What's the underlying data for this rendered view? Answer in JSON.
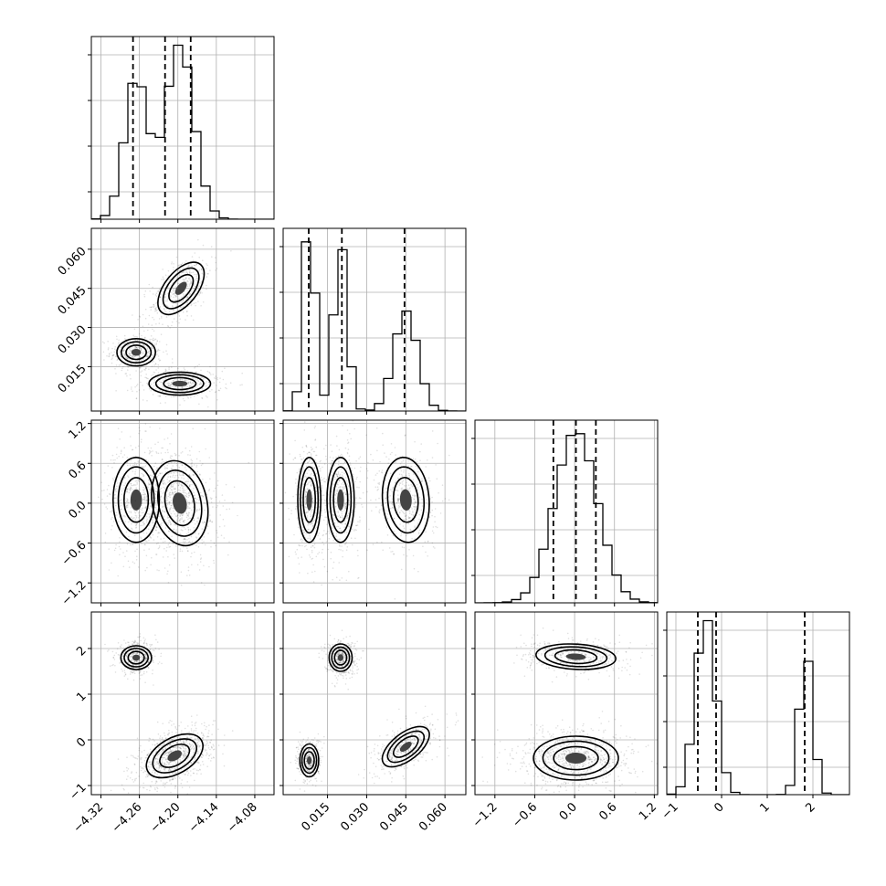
{
  "chart_data": {
    "type": "corner",
    "grid": true,
    "parameters": [
      {
        "range": [
          -4.335,
          -4.05
        ],
        "ticks": [
          -4.32,
          -4.26,
          -4.2,
          -4.14,
          -4.08
        ],
        "tick_labels": [
          "−4.32",
          "−4.26",
          "−4.20",
          "−4.14",
          "−4.08"
        ],
        "quantiles": [
          -4.27,
          -4.22,
          -4.18
        ],
        "modes": [
          {
            "mean": -4.265,
            "sd": 0.018,
            "weight": 0.4
          },
          {
            "mean": -4.197,
            "sd": 0.022,
            "weight": 0.6
          }
        ],
        "hist_max": 1.05
      },
      {
        "range": [
          -0.002,
          0.068
        ],
        "ticks": [
          0.015,
          0.03,
          0.045,
          0.06
        ],
        "tick_labels": [
          "0.015",
          "0.030",
          "0.045",
          "0.060"
        ],
        "quantiles": [
          0.0078,
          0.0205,
          0.0445
        ],
        "modes": [
          {
            "mean": 0.008,
            "sd": 0.0022,
            "weight": 0.33
          },
          {
            "mean": 0.02,
            "sd": 0.0026,
            "weight": 0.33
          },
          {
            "mean": 0.045,
            "sd": 0.0045,
            "weight": 0.34
          }
        ],
        "hist_max": 1.08
      },
      {
        "range": [
          -1.5,
          1.25
        ],
        "ticks": [
          -1.2,
          -0.6,
          0.0,
          0.6,
          1.2
        ],
        "tick_labels": [
          "−1.2",
          "−0.6",
          "0.0",
          "0.6",
          "1.2"
        ],
        "quantiles": [
          -0.32,
          0.02,
          0.32
        ],
        "modes": [
          {
            "mean": 0.02,
            "sd": 0.32,
            "weight": 1.0
          }
        ],
        "hist_max": 1.08
      },
      {
        "range": [
          -1.2,
          2.8
        ],
        "ticks": [
          -1,
          0,
          1,
          2
        ],
        "tick_labels": [
          "−1",
          "0",
          "1",
          "2"
        ],
        "quantiles": [
          -0.52,
          -0.12,
          1.82
        ],
        "modes": [
          {
            "mean": -0.35,
            "sd": 0.22,
            "weight": 0.65
          },
          {
            "mean": 1.85,
            "sd": 0.15,
            "weight": 0.35
          }
        ],
        "hist_max": 1.05
      }
    ],
    "pairs": [
      {
        "row": 1,
        "col": 0,
        "blobs": [
          {
            "cx": -4.265,
            "cy": 0.0205,
            "sx": 0.015,
            "sy": 0.0026,
            "rho": 0.0,
            "w": 0.33
          },
          {
            "cx": -4.197,
            "cy": 0.0085,
            "sx": 0.024,
            "sy": 0.0022,
            "rho": 0.0,
            "w": 0.33
          },
          {
            "cx": -4.195,
            "cy": 0.045,
            "sx": 0.018,
            "sy": 0.005,
            "rho": 0.55,
            "w": 0.34
          }
        ]
      },
      {
        "row": 2,
        "col": 0,
        "blobs": [
          {
            "cx": -4.265,
            "cy": 0.05,
            "sx": 0.018,
            "sy": 0.32,
            "rho": 0.0,
            "w": 0.4
          },
          {
            "cx": -4.197,
            "cy": 0.0,
            "sx": 0.022,
            "sy": 0.32,
            "rho": -0.2,
            "w": 0.6
          }
        ]
      },
      {
        "row": 3,
        "col": 0,
        "blobs": [
          {
            "cx": -4.265,
            "cy": 1.8,
            "sx": 0.012,
            "sy": 0.13,
            "rho": 0.0,
            "w": 0.35
          },
          {
            "cx": -4.205,
            "cy": -0.35,
            "sx": 0.022,
            "sy": 0.24,
            "rho": 0.45,
            "w": 0.65
          }
        ]
      },
      {
        "row": 2,
        "col": 1,
        "blobs": [
          {
            "cx": 0.008,
            "cy": 0.05,
            "sx": 0.0022,
            "sy": 0.32,
            "rho": 0.0,
            "w": 0.33
          },
          {
            "cx": 0.02,
            "cy": 0.05,
            "sx": 0.0026,
            "sy": 0.32,
            "rho": 0.0,
            "w": 0.33
          },
          {
            "cx": 0.045,
            "cy": 0.05,
            "sx": 0.0045,
            "sy": 0.32,
            "rho": -0.1,
            "w": 0.34
          }
        ]
      },
      {
        "row": 3,
        "col": 1,
        "blobs": [
          {
            "cx": 0.02,
            "cy": 1.8,
            "sx": 0.0022,
            "sy": 0.15,
            "rho": 0.0,
            "w": 0.35
          },
          {
            "cx": 0.008,
            "cy": -0.45,
            "sx": 0.0018,
            "sy": 0.18,
            "rho": 0.0,
            "w": 0.3
          },
          {
            "cx": 0.045,
            "cy": -0.15,
            "sx": 0.0045,
            "sy": 0.22,
            "rho": 0.6,
            "w": 0.35
          }
        ]
      },
      {
        "row": 3,
        "col": 2,
        "blobs": [
          {
            "cx": 0.02,
            "cy": 1.82,
            "sx": 0.3,
            "sy": 0.14,
            "rho": -0.15,
            "w": 0.35
          },
          {
            "cx": 0.02,
            "cy": -0.4,
            "sx": 0.32,
            "sy": 0.24,
            "rho": 0.0,
            "w": 0.65
          }
        ]
      }
    ]
  }
}
